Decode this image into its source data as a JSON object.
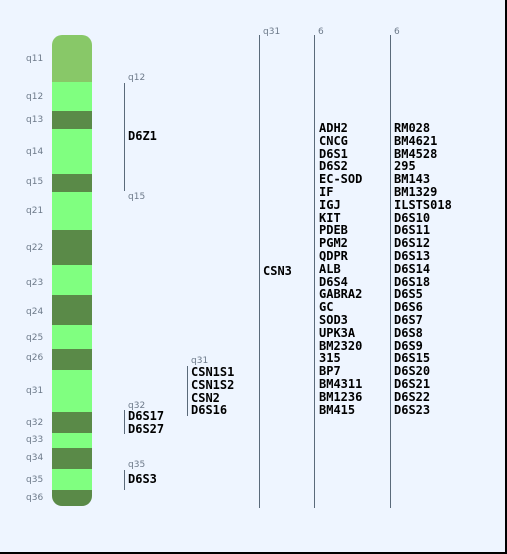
{
  "bands": [
    {
      "label": "q11",
      "dark": false,
      "light_shade": true
    },
    {
      "label": "q12",
      "dark": false
    },
    {
      "label": "q13",
      "dark": true
    },
    {
      "label": "q14",
      "dark": false
    },
    {
      "label": "q15",
      "dark": true
    },
    {
      "label": "q21",
      "dark": false
    },
    {
      "label": "q22",
      "dark": true
    },
    {
      "label": "q23",
      "dark": false
    },
    {
      "label": "q24",
      "dark": true
    },
    {
      "label": "q25",
      "dark": false
    },
    {
      "label": "q26",
      "dark": true
    },
    {
      "label": "q31",
      "dark": false
    },
    {
      "label": "q32",
      "dark": true
    },
    {
      "label": "q33",
      "dark": false
    },
    {
      "label": "q34",
      "dark": true
    },
    {
      "label": "q35",
      "dark": false
    },
    {
      "label": "q36",
      "dark": true
    }
  ],
  "colors": {
    "light": "#80ff80",
    "light_top": "#88c868",
    "dark": "#5a8a48",
    "line": "#5a6a7a",
    "small_text": "#6d7a8a",
    "background": "#eef5ff"
  },
  "groups": {
    "d6z1": {
      "top": "q12",
      "bottom": "q15",
      "markers": [
        "D6Z1"
      ]
    },
    "csn": {
      "top": "q31",
      "markers": [
        "CSN1S1",
        "CSN1S2",
        "CSN2",
        "D6S16"
      ]
    },
    "d6s17": {
      "top": "q32",
      "markers": [
        "D6S17",
        "D6S27"
      ]
    },
    "d6s3": {
      "top": "q35",
      "markers": [
        "D6S3"
      ]
    }
  },
  "tracks": {
    "csn3": {
      "header": "q31",
      "markers": [
        "CSN3"
      ]
    },
    "col6a": {
      "header": "6",
      "markers": [
        "ADH2",
        "CNCG",
        "D6S1",
        "D6S2",
        "EC-SOD",
        "IF",
        "IGJ",
        "KIT",
        "PDEB",
        "PGM2",
        "QDPR",
        "ALB",
        "D6S4",
        "GABRA2",
        "GC",
        "SOD3",
        "UPK3A",
        "BM2320",
        "315",
        "BP7",
        "BM4311",
        "BM1236",
        "BM415"
      ]
    },
    "col6b": {
      "header": "6",
      "markers": [
        "RM028",
        "BM4621",
        "BM4528",
        "295",
        "BM143",
        "BM1329",
        "ILSTS018",
        "D6S10",
        "D6S11",
        "D6S12",
        "D6S13",
        "D6S14",
        "D6S18",
        "D6S5",
        "D6S6",
        "D6S7",
        "D6S8",
        "D6S9",
        "D6S15",
        "D6S20",
        "D6S21",
        "D6S22",
        "D6S23"
      ]
    }
  }
}
